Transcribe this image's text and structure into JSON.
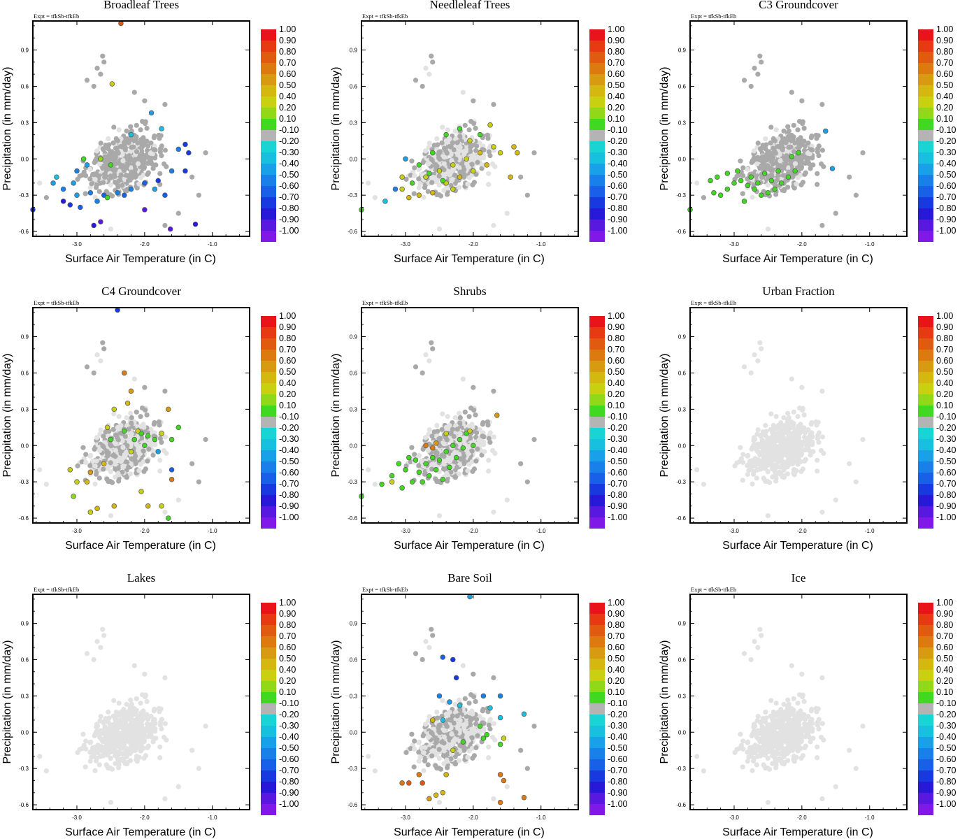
{
  "figure": {
    "expt_label": "Expt = tfkSb-tfkEb"
  },
  "colorbar": {
    "labels": [
      "1.00",
      "0.90",
      "0.80",
      "0.70",
      "0.60",
      "0.50",
      "0.40",
      "0.20",
      "0.10",
      "-0.10",
      "-0.20",
      "-0.30",
      "-0.40",
      "-0.50",
      "-0.60",
      "-0.70",
      "-0.80",
      "-0.90",
      "-1.00"
    ],
    "colors": [
      "#e8141a",
      "#e83a12",
      "#e05a10",
      "#dc7a10",
      "#d89a10",
      "#d4b810",
      "#c8d010",
      "#90d818",
      "#40d820",
      "#b4b4b4",
      "#18d4d4",
      "#18c0e0",
      "#18a0e8",
      "#1880e8",
      "#1860e8",
      "#1838e0",
      "#2818d8",
      "#5818e0",
      "#8018e8"
    ]
  },
  "chart_data": [
    {
      "type": "scatter",
      "title": "Broadleaf Trees",
      "xlabel": "Surface Air Temperature (in C)",
      "ylabel": "Precipitation (in mm/day)",
      "xticks": [
        "-3.0",
        "-2.0",
        "-1.0"
      ],
      "yticks": [
        "0.9",
        "0.6",
        "0.3",
        "0.0",
        "-0.3",
        "-0.6"
      ],
      "xlim": [
        -3.65,
        -0.45
      ],
      "ylim": [
        -0.64,
        1.14
      ],
      "colored_points": [
        [
          -2.35,
          1.12,
          0.85
        ],
        [
          -2.48,
          0.62,
          0.45
        ],
        [
          -3.65,
          -0.42,
          -0.72
        ],
        [
          -3.2,
          -0.35,
          -0.75
        ],
        [
          -3.1,
          -0.38,
          -0.72
        ],
        [
          -2.95,
          -0.4,
          -0.6
        ],
        [
          -2.75,
          -0.55,
          -0.8
        ],
        [
          -2.65,
          -0.52,
          -0.85
        ],
        [
          -2.0,
          -0.42,
          -0.9
        ],
        [
          -1.62,
          -0.58,
          -0.85
        ],
        [
          -1.25,
          -0.54,
          -0.75
        ],
        [
          -1.4,
          0.12,
          -0.72
        ],
        [
          -1.35,
          0.05,
          -0.7
        ],
        [
          -1.4,
          -0.1,
          -0.65
        ],
        [
          -3.35,
          -0.2,
          -0.35
        ],
        [
          -3.2,
          -0.25,
          -0.45
        ],
        [
          -3.0,
          -0.3,
          -0.4
        ],
        [
          -2.8,
          -0.28,
          -0.5
        ],
        [
          -2.6,
          -0.3,
          -0.6
        ],
        [
          -2.4,
          -0.28,
          -0.5
        ],
        [
          -2.2,
          -0.25,
          -0.45
        ],
        [
          -2.0,
          -0.2,
          -0.55
        ],
        [
          -1.8,
          -0.18,
          -0.65
        ],
        [
          -1.6,
          -0.1,
          -0.5
        ],
        [
          -3.0,
          -0.1,
          -0.45
        ],
        [
          -2.85,
          -0.05,
          -0.35
        ],
        [
          -1.9,
          0.38,
          -0.35
        ],
        [
          -1.75,
          0.25,
          -0.3
        ],
        [
          -2.2,
          0.2,
          -0.25
        ],
        [
          -2.9,
          0.0,
          0.15
        ],
        [
          -2.65,
          0.0,
          0.2
        ],
        [
          -2.5,
          -0.05,
          0.15
        ],
        [
          -2.55,
          -0.32,
          0.15
        ],
        [
          -3.3,
          -0.15,
          -0.3
        ],
        [
          -3.05,
          -0.2,
          -0.4
        ],
        [
          -1.5,
          0.08,
          -0.45
        ],
        [
          -1.7,
          -0.3,
          -0.55
        ],
        [
          -2.7,
          -0.35,
          -0.5
        ],
        [
          -2.3,
          -0.3,
          -0.6
        ],
        [
          -1.85,
          -0.25,
          -0.4
        ]
      ],
      "gray_points": "dark"
    },
    {
      "type": "scatter",
      "title": "Needleleaf Trees",
      "xlabel": "Surface Air Temperature (in C)",
      "ylabel": "Precipitation (in mm/day)",
      "xticks": [
        "-3.0",
        "-2.0",
        "-1.0"
      ],
      "yticks": [
        "0.9",
        "0.6",
        "0.3",
        "0.0",
        "-0.3",
        "-0.6"
      ],
      "xlim": [
        -3.65,
        -0.45
      ],
      "ylim": [
        -0.64,
        1.14
      ],
      "colored_points": [
        [
          -3.65,
          -0.42,
          0.15
        ],
        [
          -3.3,
          -0.35,
          -0.3
        ],
        [
          -3.05,
          -0.25,
          0.45
        ],
        [
          -2.95,
          -0.32,
          0.5
        ],
        [
          -2.8,
          -0.3,
          0.55
        ],
        [
          -2.6,
          -0.28,
          0.5
        ],
        [
          -2.4,
          -0.2,
          0.45
        ],
        [
          -2.2,
          -0.15,
          0.5
        ],
        [
          -2.0,
          -0.1,
          0.45
        ],
        [
          -1.8,
          -0.05,
          0.5
        ],
        [
          -1.6,
          0.05,
          0.45
        ],
        [
          -1.4,
          0.1,
          0.5
        ],
        [
          -2.7,
          -0.15,
          0.45
        ],
        [
          -2.5,
          -0.1,
          0.4
        ],
        [
          -2.3,
          -0.05,
          0.45
        ],
        [
          -2.1,
          0.0,
          0.4
        ],
        [
          -1.9,
          0.05,
          0.5
        ],
        [
          -1.7,
          0.1,
          0.45
        ],
        [
          -2.6,
          0.05,
          0.15
        ],
        [
          -2.4,
          0.2,
          0.15
        ],
        [
          -2.2,
          0.25,
          0.15
        ],
        [
          -1.9,
          0.2,
          0.15
        ],
        [
          -2.8,
          -0.05,
          0.15
        ],
        [
          -2.65,
          -0.12,
          0.15
        ],
        [
          -2.45,
          -0.18,
          0.15
        ],
        [
          -3.0,
          0.0,
          -0.35
        ],
        [
          -3.15,
          -0.25,
          -0.5
        ],
        [
          -1.45,
          -0.15,
          0.55
        ],
        [
          -1.35,
          0.05,
          0.55
        ],
        [
          -2.05,
          0.15,
          0.45
        ],
        [
          -1.75,
          0.28,
          0.45
        ],
        [
          -2.3,
          -0.25,
          0.45
        ],
        [
          -2.9,
          -0.2,
          0.15
        ],
        [
          -3.05,
          -0.15,
          0.45
        ]
      ],
      "gray_points": "mixed"
    },
    {
      "type": "scatter",
      "title": "C3 Groundcover",
      "xlabel": "Surface Air Temperature (in C)",
      "ylabel": "Precipitation (in mm/day)",
      "xticks": [
        "-3.0",
        "-2.0",
        "-1.0"
      ],
      "yticks": [
        "0.9",
        "0.6",
        "0.3",
        "0.0",
        "-0.3",
        "-0.6"
      ],
      "xlim": [
        -3.65,
        -0.45
      ],
      "ylim": [
        -0.64,
        1.14
      ],
      "colored_points": [
        [
          -3.65,
          -0.42,
          0.15
        ],
        [
          -1.65,
          0.23,
          -0.35
        ],
        [
          -1.55,
          -0.08,
          -0.35
        ],
        [
          -3.3,
          -0.28,
          0.15
        ],
        [
          -3.2,
          -0.3,
          0.15
        ],
        [
          -3.1,
          -0.25,
          0.15
        ],
        [
          -3.0,
          -0.2,
          0.15
        ],
        [
          -2.9,
          -0.18,
          0.15
        ],
        [
          -2.8,
          -0.22,
          0.15
        ],
        [
          -2.7,
          -0.25,
          0.15
        ],
        [
          -2.6,
          -0.3,
          0.15
        ],
        [
          -2.5,
          -0.28,
          0.15
        ],
        [
          -2.4,
          -0.25,
          0.15
        ],
        [
          -2.3,
          -0.2,
          0.15
        ],
        [
          -2.2,
          -0.15,
          0.15
        ],
        [
          -2.1,
          -0.1,
          0.15
        ],
        [
          -3.25,
          -0.15,
          0.15
        ],
        [
          -3.1,
          -0.12,
          0.15
        ],
        [
          -2.95,
          -0.1,
          0.15
        ],
        [
          -2.75,
          -0.15,
          0.15
        ],
        [
          -2.55,
          -0.12,
          0.15
        ],
        [
          -2.35,
          -0.1,
          0.15
        ],
        [
          -2.15,
          0.02,
          0.15
        ],
        [
          -2.05,
          0.05,
          0.15
        ],
        [
          -2.65,
          -0.2,
          0.15
        ],
        [
          -2.85,
          -0.35,
          0.15
        ],
        [
          -2.45,
          -0.18,
          0.15
        ],
        [
          -3.35,
          -0.18,
          0.15
        ]
      ],
      "gray_points": "dark"
    },
    {
      "type": "scatter",
      "title": "C4 Groundcover",
      "xlabel": "Surface Air Temperature (in C)",
      "ylabel": "Precipitation (in mm/day)",
      "xticks": [
        "-3.0",
        "-2.0",
        "-1.0"
      ],
      "yticks": [
        "0.9",
        "0.6",
        "0.3",
        "0.0",
        "-0.3",
        "-0.6"
      ],
      "xlim": [
        -3.65,
        -0.45
      ],
      "ylim": [
        -0.64,
        1.14
      ],
      "colored_points": [
        [
          -2.4,
          1.12,
          -0.72
        ],
        [
          -2.3,
          0.6,
          0.75
        ],
        [
          -2.2,
          0.45,
          0.65
        ],
        [
          -2.25,
          0.35,
          0.5
        ],
        [
          -1.65,
          0.3,
          0.6
        ],
        [
          -2.45,
          0.3,
          0.45
        ],
        [
          -2.55,
          0.15,
          0.35
        ],
        [
          -2.6,
          -0.15,
          0.5
        ],
        [
          -2.8,
          -0.22,
          0.6
        ],
        [
          -2.85,
          -0.3,
          0.5
        ],
        [
          -3.0,
          -0.3,
          0.4
        ],
        [
          -3.1,
          -0.2,
          0.35
        ],
        [
          -3.05,
          -0.42,
          0.2
        ],
        [
          -2.8,
          -0.55,
          0.45
        ],
        [
          -2.7,
          -0.52,
          0.55
        ],
        [
          -2.45,
          -0.5,
          0.55
        ],
        [
          -2.05,
          -0.38,
          0.45
        ],
        [
          -1.95,
          -0.5,
          0.55
        ],
        [
          -1.6,
          -0.2,
          -0.6
        ],
        [
          -1.6,
          -0.28,
          0.7
        ],
        [
          -1.65,
          -0.6,
          0.15
        ],
        [
          -1.75,
          -0.5,
          0.35
        ],
        [
          -1.5,
          0.15,
          0.15
        ],
        [
          -1.6,
          0.05,
          0.15
        ],
        [
          -1.85,
          0.05,
          0.15
        ],
        [
          -1.95,
          0.08,
          0.15
        ],
        [
          -2.05,
          0.1,
          0.15
        ],
        [
          -2.15,
          0.05,
          0.15
        ],
        [
          -2.3,
          0.12,
          0.15
        ],
        [
          -2.5,
          0.05,
          0.15
        ],
        [
          -1.75,
          0.1,
          0.35
        ],
        [
          -2.0,
          0.0,
          0.15
        ],
        [
          -2.2,
          -0.05,
          0.45
        ],
        [
          -1.8,
          -0.05,
          -0.4
        ],
        [
          -2.1,
          0.12,
          0.45
        ]
      ],
      "gray_points": "mixed"
    },
    {
      "type": "scatter",
      "title": "Shrubs",
      "xlabel": "Surface Air Temperature (in C)",
      "ylabel": "Precipitation (in mm/day)",
      "xticks": [
        "-3.0",
        "-2.0",
        "-1.0"
      ],
      "yticks": [
        "0.9",
        "0.6",
        "0.3",
        "0.0",
        "-0.3",
        "-0.6"
      ],
      "xlim": [
        -3.65,
        -0.45
      ],
      "ylim": [
        -0.64,
        1.14
      ],
      "colored_points": [
        [
          -3.65,
          -0.42,
          0.15
        ],
        [
          -3.35,
          -0.32,
          0.15
        ],
        [
          -3.2,
          -0.25,
          0.15
        ],
        [
          -3.1,
          -0.15,
          0.15
        ],
        [
          -3.0,
          -0.2,
          0.15
        ],
        [
          -2.9,
          -0.3,
          0.15
        ],
        [
          -2.8,
          -0.22,
          0.15
        ],
        [
          -2.7,
          -0.15,
          0.15
        ],
        [
          -2.6,
          -0.1,
          0.15
        ],
        [
          -2.5,
          -0.12,
          0.15
        ],
        [
          -2.4,
          -0.05,
          0.15
        ],
        [
          -2.3,
          0.0,
          0.15
        ],
        [
          -2.2,
          0.05,
          0.15
        ],
        [
          -2.1,
          0.1,
          0.15
        ],
        [
          -2.0,
          0.0,
          0.15
        ],
        [
          -2.75,
          -0.3,
          0.15
        ],
        [
          -2.65,
          -0.25,
          0.15
        ],
        [
          -2.55,
          -0.2,
          0.15
        ],
        [
          -2.45,
          -0.28,
          0.15
        ],
        [
          -2.85,
          -0.12,
          0.15
        ],
        [
          -3.05,
          -0.35,
          0.15
        ],
        [
          -2.95,
          -0.1,
          0.15
        ],
        [
          -2.35,
          -0.18,
          0.15
        ],
        [
          -2.25,
          -0.1,
          0.15
        ],
        [
          -2.15,
          -0.02,
          0.15
        ],
        [
          -2.6,
          -0.02,
          0.75
        ],
        [
          -2.7,
          0.0,
          0.75
        ],
        [
          -2.55,
          0.02,
          0.6
        ],
        [
          -1.65,
          0.25,
          0.65
        ],
        [
          -2.4,
          0.1,
          0.45
        ],
        [
          -2.05,
          0.12,
          0.45
        ],
        [
          -3.2,
          -0.3,
          0.45
        ]
      ],
      "gray_points": "mixed"
    },
    {
      "type": "scatter",
      "title": "Urban Fraction",
      "xlabel": "Surface Air Temperature (in C)",
      "ylabel": "Precipitation (in mm/day)",
      "xticks": [
        "-3.0",
        "-2.0",
        "-1.0"
      ],
      "yticks": [
        "0.9",
        "0.6",
        "0.3",
        "0.0",
        "-0.3",
        "-0.6"
      ],
      "xlim": [
        -3.65,
        -0.45
      ],
      "ylim": [
        -0.64,
        1.14
      ],
      "colored_points": [],
      "gray_points": "light"
    },
    {
      "type": "scatter",
      "title": "Lakes",
      "xlabel": "Surface Air Temperature (in C)",
      "ylabel": "Precipitation (in mm/day)",
      "xticks": [
        "-3.0",
        "-2.0",
        "-1.0"
      ],
      "yticks": [
        "0.9",
        "0.6",
        "0.3",
        "0.0",
        "-0.3",
        "-0.6"
      ],
      "xlim": [
        -3.65,
        -0.45
      ],
      "ylim": [
        -0.64,
        1.14
      ],
      "colored_points": [],
      "gray_points": "light"
    },
    {
      "type": "scatter",
      "title": "Bare Soil",
      "xlabel": "Surface Air Temperature (in C)",
      "ylabel": "Precipitation (in mm/day)",
      "xticks": [
        "-3.0",
        "-2.0",
        "-1.0"
      ],
      "yticks": [
        "0.9",
        "0.6",
        "0.3",
        "0.0",
        "-0.3",
        "-0.6"
      ],
      "xlim": [
        -3.65,
        -0.45
      ],
      "ylim": [
        -0.64,
        1.14
      ],
      "colored_points": [
        [
          -2.05,
          1.12,
          -0.35
        ],
        [
          -2.45,
          0.62,
          -0.55
        ],
        [
          -2.3,
          0.6,
          -0.65
        ],
        [
          -2.25,
          0.45,
          -0.7
        ],
        [
          -2.5,
          0.3,
          -0.45
        ],
        [
          -2.35,
          0.25,
          -0.35
        ],
        [
          -2.2,
          0.22,
          -0.3
        ],
        [
          -1.85,
          0.3,
          -0.45
        ],
        [
          -1.6,
          0.3,
          -0.5
        ],
        [
          -1.75,
          0.2,
          -0.3
        ],
        [
          -1.25,
          0.15,
          -0.3
        ],
        [
          -1.6,
          0.12,
          -0.25
        ],
        [
          -2.45,
          0.1,
          -0.25
        ],
        [
          -1.9,
          0.05,
          0.15
        ],
        [
          -1.85,
          -0.05,
          0.15
        ],
        [
          -1.8,
          -0.02,
          0.15
        ],
        [
          -1.6,
          -0.1,
          0.15
        ],
        [
          -2.15,
          -0.08,
          0.15
        ],
        [
          -1.55,
          -0.05,
          0.45
        ],
        [
          -2.6,
          0.1,
          0.5
        ],
        [
          -2.8,
          -0.35,
          0.7
        ],
        [
          -2.95,
          -0.42,
          0.8
        ],
        [
          -3.05,
          -0.42,
          0.75
        ],
        [
          -2.75,
          -0.42,
          0.85
        ],
        [
          -2.65,
          -0.55,
          0.6
        ],
        [
          -2.55,
          -0.52,
          0.55
        ],
        [
          -2.45,
          -0.5,
          0.55
        ],
        [
          -2.4,
          -0.35,
          0.5
        ],
        [
          -1.6,
          -0.58,
          0.75
        ],
        [
          -1.25,
          -0.54,
          0.75
        ],
        [
          -1.55,
          -0.4,
          0.7
        ],
        [
          -1.6,
          -0.35,
          0.75
        ],
        [
          -2.3,
          -0.15,
          0.45
        ]
      ],
      "gray_points": "mixed"
    },
    {
      "type": "scatter",
      "title": "Ice",
      "xlabel": "Surface Air Temperature (in C)",
      "ylabel": "Precipitation (in mm/day)",
      "xticks": [
        "-3.0",
        "-2.0",
        "-1.0"
      ],
      "yticks": [
        "0.9",
        "0.6",
        "0.3",
        "0.0",
        "-0.3",
        "-0.6"
      ],
      "xlim": [
        -3.65,
        -0.45
      ],
      "ylim": [
        -0.64,
        1.14
      ],
      "colored_points": [],
      "gray_points": "light"
    }
  ]
}
